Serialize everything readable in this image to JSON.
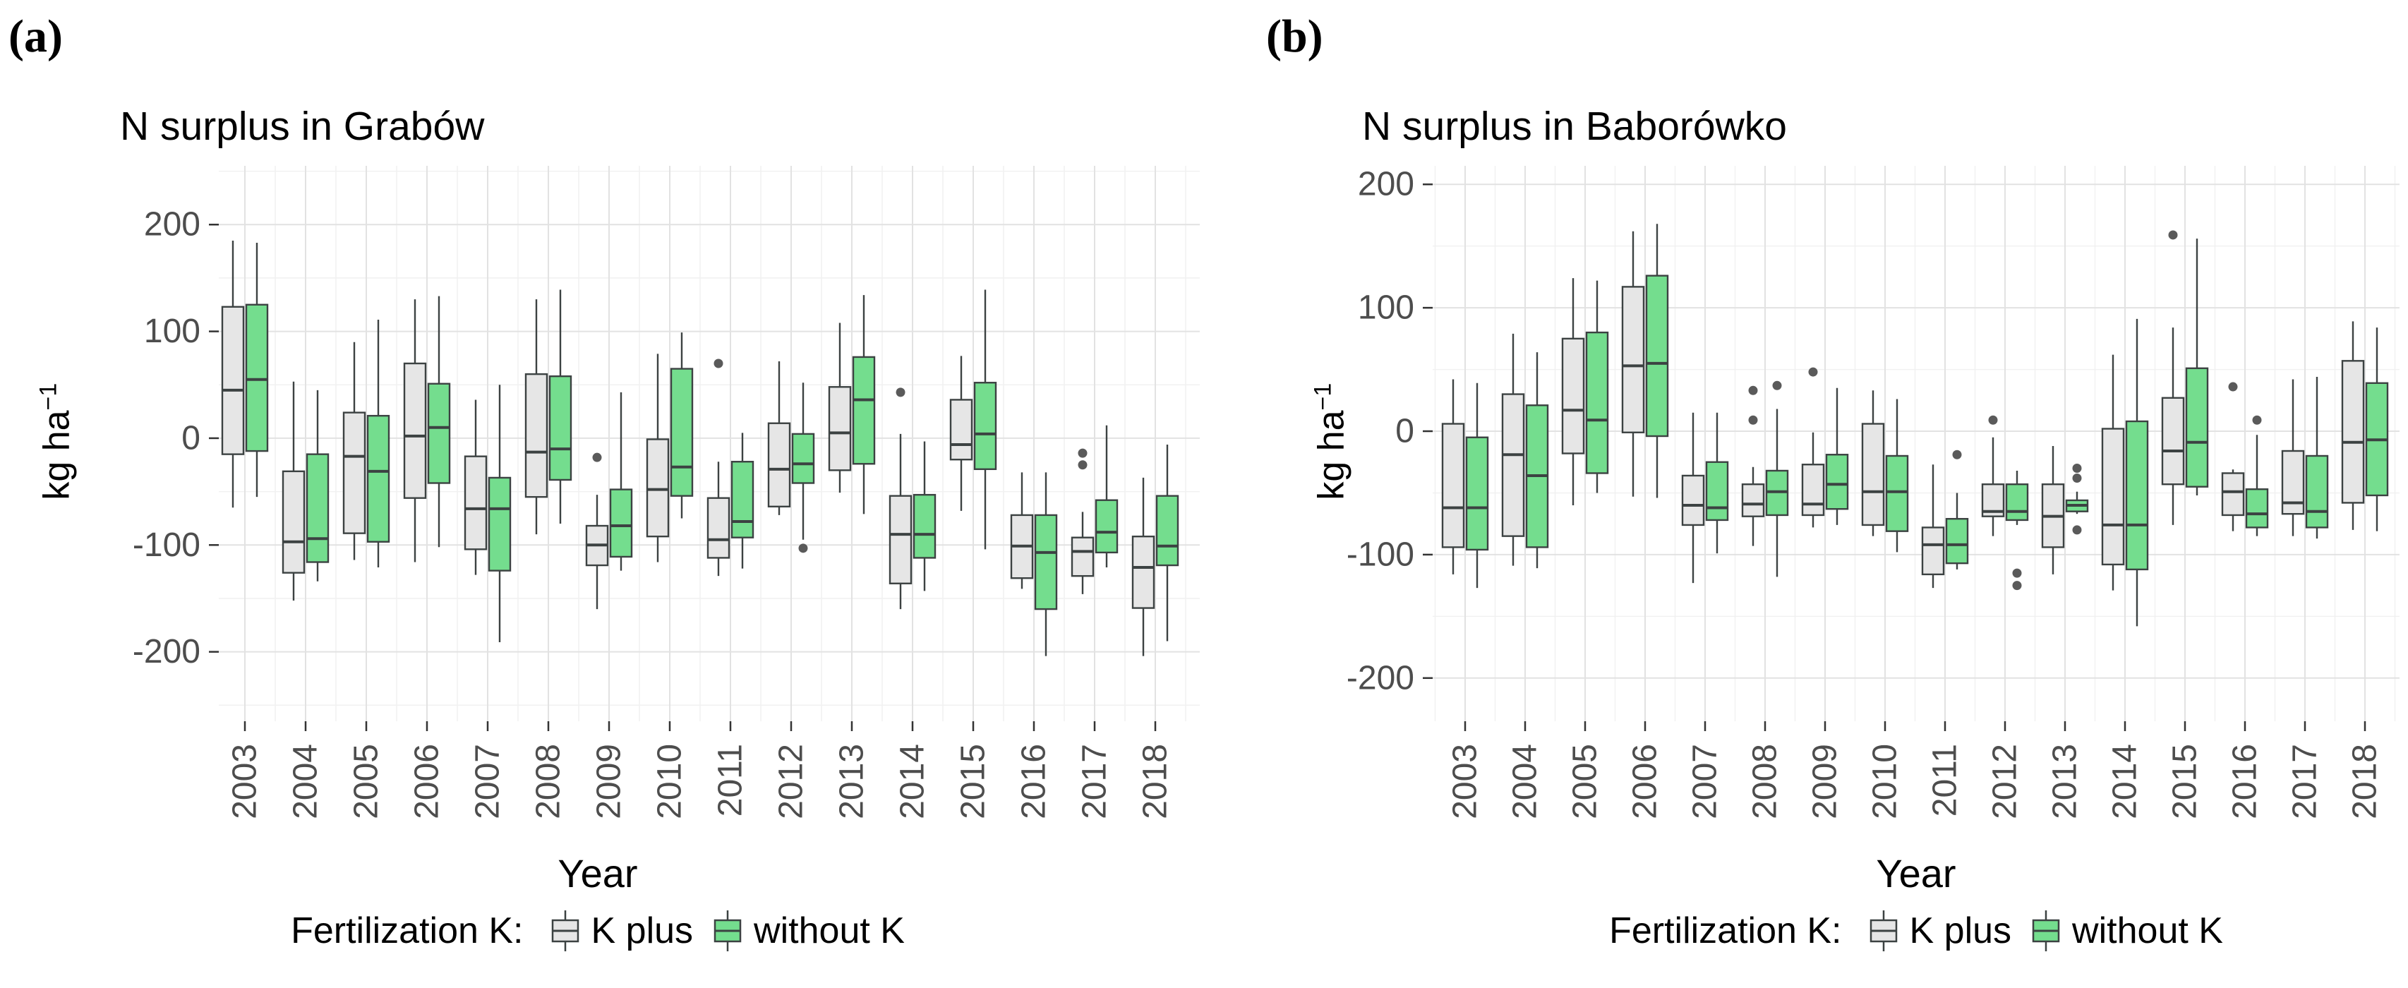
{
  "figure": {
    "background": "#ffffff",
    "colors": {
      "k_plus_fill": "#E6E6E6",
      "without_k_fill": "#74DD8E",
      "box_border": "#3C4242",
      "grid_major": "#E2E2E2",
      "grid_minor": "#F1F1F1",
      "tick_text": "#4D4D4D",
      "axis_tick": "#333333",
      "outlier": "#5A5A5A"
    },
    "legend": {
      "title": "Fertilization K:",
      "items": [
        {
          "label": "K plus",
          "color": "#E6E6E6"
        },
        {
          "label": "without K",
          "color": "#74DD8E"
        }
      ]
    }
  },
  "panels": [
    {
      "letter": "(a)",
      "title": "N surplus in Grabów",
      "ylabel_base": "kg ha",
      "ylabel_sup": "−1",
      "xlabel": "Year"
    },
    {
      "letter": "(b)",
      "title": "N surplus in Baborówko",
      "ylabel_base": "kg ha",
      "ylabel_sup": "−1",
      "xlabel": "Year"
    }
  ],
  "chart_data": [
    {
      "type": "boxplot",
      "title": "N surplus in Grabów",
      "xlabel": "Year",
      "ylabel": "kg ha-1",
      "units": "kg ha-1",
      "categories": [
        "2003",
        "2004",
        "2005",
        "2006",
        "2007",
        "2008",
        "2009",
        "2010",
        "2011",
        "2012",
        "2013",
        "2014",
        "2015",
        "2016",
        "2017",
        "2018"
      ],
      "y_ticks": [
        200,
        100,
        0,
        -100,
        -200
      ],
      "ylim": [
        -265,
        255
      ],
      "grid": true,
      "legend_position": "bottom",
      "series": [
        {
          "name": "K plus",
          "fill": "#E6E6E6",
          "boxes": [
            {
              "stats": [
                -65,
                -15,
                45,
                123,
                185
              ],
              "outliers": []
            },
            {
              "stats": [
                -152,
                -126,
                -97,
                -31,
                53
              ],
              "outliers": []
            },
            {
              "stats": [
                -114,
                -89,
                -17,
                24,
                90
              ],
              "outliers": []
            },
            {
              "stats": [
                -116,
                -56,
                2,
                70,
                130
              ],
              "outliers": []
            },
            {
              "stats": [
                -128,
                -104,
                -66,
                -17,
                36
              ],
              "outliers": []
            },
            {
              "stats": [
                -90,
                -55,
                -13,
                60,
                130
              ],
              "outliers": []
            },
            {
              "stats": [
                -160,
                -119,
                -100,
                -82,
                -53
              ],
              "outliers": [
                -18
              ]
            },
            {
              "stats": [
                -116,
                -92,
                -48,
                -1,
                79
              ],
              "outliers": []
            },
            {
              "stats": [
                -129,
                -112,
                -95,
                -56,
                -22
              ],
              "outliers": [
                70
              ]
            },
            {
              "stats": [
                -72,
                -64,
                -29,
                14,
                72
              ],
              "outliers": []
            },
            {
              "stats": [
                -51,
                -30,
                5,
                48,
                108
              ],
              "outliers": []
            },
            {
              "stats": [
                -160,
                -136,
                -90,
                -54,
                4
              ],
              "outliers": [
                43
              ]
            },
            {
              "stats": [
                -68,
                -20,
                -6,
                36,
                77
              ],
              "outliers": []
            },
            {
              "stats": [
                -141,
                -131,
                -101,
                -72,
                -32
              ],
              "outliers": []
            },
            {
              "stats": [
                -146,
                -129,
                -106,
                -93,
                -69
              ],
              "outliers": [
                -14,
                -25
              ]
            },
            {
              "stats": [
                -204,
                -159,
                -121,
                -92,
                -37
              ],
              "outliers": []
            }
          ]
        },
        {
          "name": "without K",
          "fill": "#74DD8E",
          "boxes": [
            {
              "stats": [
                -55,
                -12,
                55,
                125,
                183
              ],
              "outliers": []
            },
            {
              "stats": [
                -134,
                -116,
                -94,
                -15,
                45
              ],
              "outliers": []
            },
            {
              "stats": [
                -121,
                -97,
                -31,
                21,
                111
              ],
              "outliers": []
            },
            {
              "stats": [
                -102,
                -42,
                10,
                51,
                133
              ],
              "outliers": []
            },
            {
              "stats": [
                -191,
                -124,
                -66,
                -37,
                50
              ],
              "outliers": []
            },
            {
              "stats": [
                -80,
                -39,
                -10,
                58,
                139
              ],
              "outliers": []
            },
            {
              "stats": [
                -124,
                -111,
                -82,
                -48,
                43
              ],
              "outliers": []
            },
            {
              "stats": [
                -75,
                -54,
                -27,
                65,
                99
              ],
              "outliers": []
            },
            {
              "stats": [
                -122,
                -93,
                -78,
                -22,
                5
              ],
              "outliers": []
            },
            {
              "stats": [
                -95,
                -42,
                -24,
                4,
                52
              ],
              "outliers": [
                -103
              ]
            },
            {
              "stats": [
                -71,
                -24,
                36,
                76,
                134
              ],
              "outliers": []
            },
            {
              "stats": [
                -143,
                -112,
                -90,
                -53,
                -3
              ],
              "outliers": []
            },
            {
              "stats": [
                -104,
                -29,
                4,
                52,
                139
              ],
              "outliers": []
            },
            {
              "stats": [
                -204,
                -160,
                -107,
                -72,
                -32
              ],
              "outliers": []
            },
            {
              "stats": [
                -121,
                -107,
                -88,
                -58,
                12
              ],
              "outliers": []
            },
            {
              "stats": [
                -190,
                -119,
                -101,
                -54,
                -6
              ],
              "outliers": []
            }
          ]
        }
      ]
    },
    {
      "type": "boxplot",
      "title": "N surplus in Baborówko",
      "xlabel": "Year",
      "ylabel": "kg ha-1",
      "units": "kg ha-1",
      "categories": [
        "2003",
        "2004",
        "2005",
        "2006",
        "2007",
        "2008",
        "2009",
        "2010",
        "2011",
        "2012",
        "2013",
        "2014",
        "2015",
        "2016",
        "2017",
        "2018"
      ],
      "y_ticks": [
        200,
        100,
        0,
        -100,
        -200
      ],
      "ylim": [
        -235,
        215
      ],
      "grid": true,
      "legend_position": "bottom",
      "series": [
        {
          "name": "K plus",
          "fill": "#E6E6E6",
          "boxes": [
            {
              "stats": [
                -116,
                -94,
                -62,
                6,
                42
              ],
              "outliers": []
            },
            {
              "stats": [
                -109,
                -85,
                -19,
                30,
                79
              ],
              "outliers": []
            },
            {
              "stats": [
                -60,
                -18,
                17,
                75,
                124
              ],
              "outliers": []
            },
            {
              "stats": [
                -53,
                -1,
                53,
                117,
                162
              ],
              "outliers": []
            },
            {
              "stats": [
                -123,
                -76,
                -60,
                -36,
                15
              ],
              "outliers": []
            },
            {
              "stats": [
                -93,
                -69,
                -59,
                -43,
                -29
              ],
              "outliers": [
                33,
                9
              ]
            },
            {
              "stats": [
                -78,
                -68,
                -59,
                -27,
                -1
              ],
              "outliers": [
                48
              ]
            },
            {
              "stats": [
                -85,
                -76,
                -49,
                6,
                33
              ],
              "outliers": []
            },
            {
              "stats": [
                -127,
                -116,
                -92,
                -78,
                -27
              ],
              "outliers": []
            },
            {
              "stats": [
                -85,
                -69,
                -65,
                -43,
                -5
              ],
              "outliers": [
                9
              ]
            },
            {
              "stats": [
                -116,
                -94,
                -69,
                -43,
                -12
              ],
              "outliers": []
            },
            {
              "stats": [
                -129,
                -108,
                -76,
                2,
                62
              ],
              "outliers": []
            },
            {
              "stats": [
                -76,
                -43,
                -16,
                27,
                84
              ],
              "outliers": [
                159
              ]
            },
            {
              "stats": [
                -81,
                -68,
                -49,
                -34,
                -31
              ],
              "outliers": [
                36
              ]
            },
            {
              "stats": [
                -85,
                -67,
                -58,
                -16,
                42
              ],
              "outliers": []
            },
            {
              "stats": [
                -80,
                -58,
                -9,
                57,
                89
              ],
              "outliers": []
            }
          ]
        },
        {
          "name": "without K",
          "fill": "#74DD8E",
          "boxes": [
            {
              "stats": [
                -127,
                -96,
                -62,
                -5,
                39
              ],
              "outliers": []
            },
            {
              "stats": [
                -111,
                -94,
                -36,
                21,
                64
              ],
              "outliers": []
            },
            {
              "stats": [
                -50,
                -34,
                9,
                80,
                122
              ],
              "outliers": []
            },
            {
              "stats": [
                -54,
                -4,
                55,
                126,
                168
              ],
              "outliers": []
            },
            {
              "stats": [
                -99,
                -72,
                -62,
                -25,
                15
              ],
              "outliers": []
            },
            {
              "stats": [
                -118,
                -68,
                -49,
                -32,
                18
              ],
              "outliers": [
                37
              ]
            },
            {
              "stats": [
                -76,
                -63,
                -43,
                -19,
                35
              ],
              "outliers": []
            },
            {
              "stats": [
                -98,
                -81,
                -49,
                -20,
                26
              ],
              "outliers": []
            },
            {
              "stats": [
                -112,
                -107,
                -92,
                -71,
                -50
              ],
              "outliers": [
                -19
              ]
            },
            {
              "stats": [
                -76,
                -72,
                -65,
                -43,
                -32
              ],
              "outliers": [
                -115,
                -125
              ]
            },
            {
              "stats": [
                -67,
                -65,
                -60,
                -56,
                -49
              ],
              "outliers": [
                -30,
                -38,
                -80
              ]
            },
            {
              "stats": [
                -158,
                -112,
                -76,
                8,
                91
              ],
              "outliers": []
            },
            {
              "stats": [
                -52,
                -45,
                -9,
                51,
                156
              ],
              "outliers": []
            },
            {
              "stats": [
                -85,
                -78,
                -67,
                -47,
                -3
              ],
              "outliers": [
                9
              ]
            },
            {
              "stats": [
                -87,
                -78,
                -65,
                -20,
                44
              ],
              "outliers": []
            },
            {
              "stats": [
                -81,
                -52,
                -7,
                39,
                84
              ],
              "outliers": []
            }
          ]
        }
      ]
    }
  ]
}
